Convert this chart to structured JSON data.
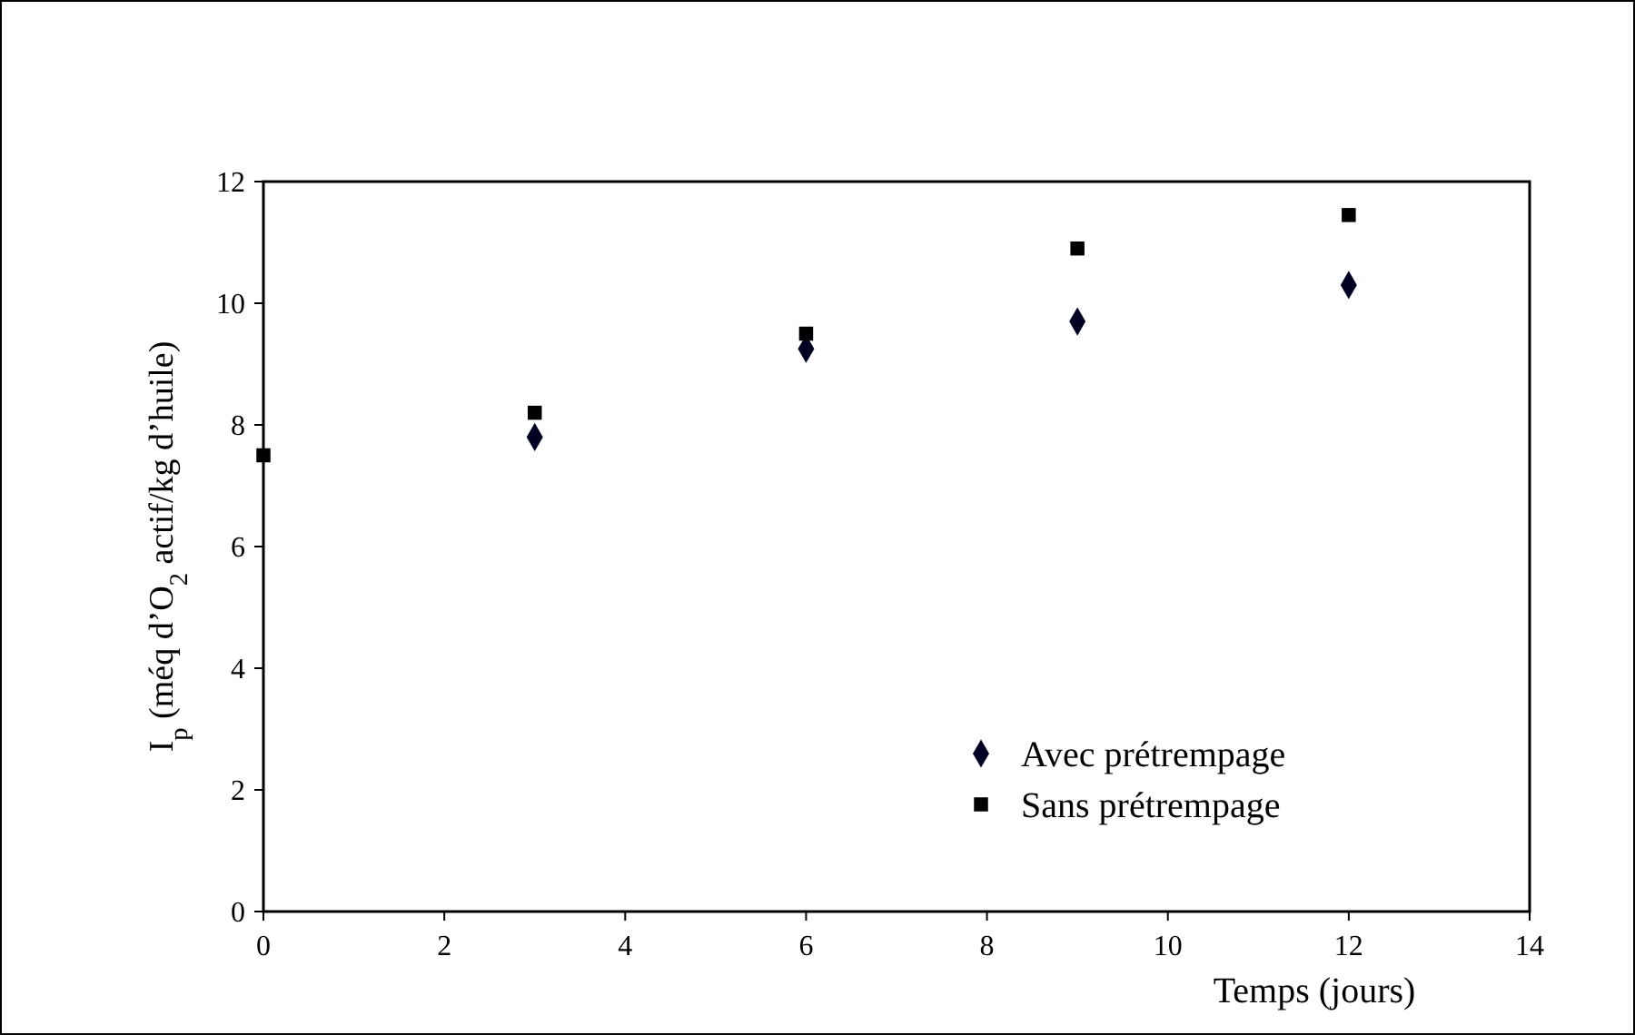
{
  "chart_data": {
    "type": "scatter",
    "xlabel": "Temps (jours)",
    "ylabel": "I$_{p}$ (méq d’O$_{2}$ actif/kg d’huile)",
    "x": [
      0,
      3,
      6,
      9,
      12
    ],
    "series": [
      {
        "name": "Avec prétrempage",
        "color": "#000022",
        "marker": "diamond",
        "values": [
          null,
          7.8,
          9.25,
          9.7,
          10.3
        ]
      },
      {
        "name": "Sans prétrempage",
        "color": "#000000",
        "marker": "square",
        "values": [
          7.5,
          8.2,
          9.5,
          10.9,
          11.45
        ]
      }
    ],
    "xlim": [
      0,
      14
    ],
    "xticks": [
      0,
      2,
      4,
      6,
      8,
      10,
      12,
      14
    ],
    "ylim": [
      0,
      12
    ],
    "yticks": [
      0,
      2,
      4,
      6,
      8,
      10,
      12
    ],
    "grid": false,
    "legend": "bottom right"
  }
}
